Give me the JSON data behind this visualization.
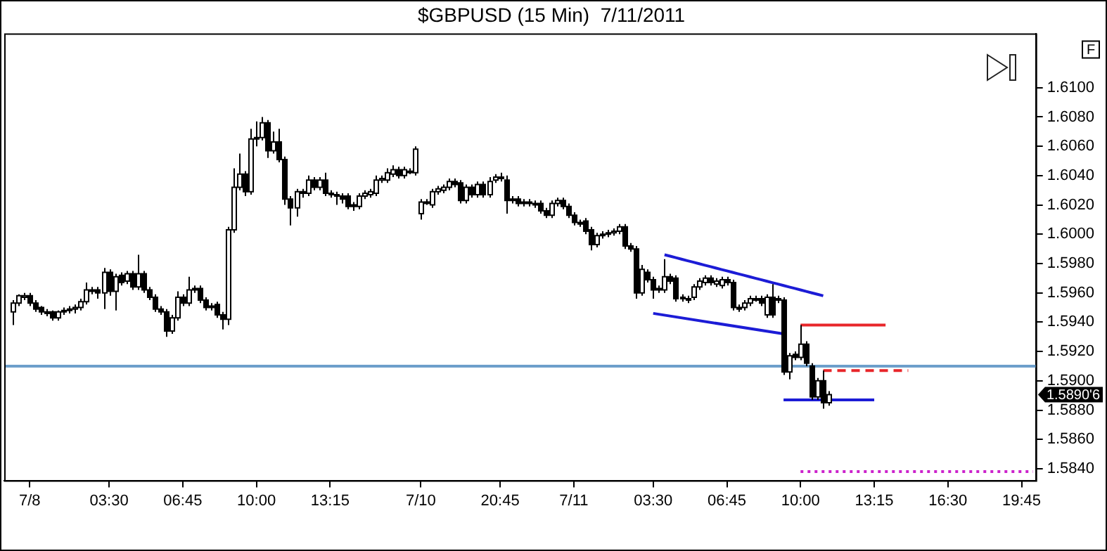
{
  "chart_data": {
    "type": "candlestick",
    "title": "$GBPUSD (15 Min)  7/11/2011",
    "categories": [
      null,
      null,
      null,
      null,
      "7/8",
      null,
      null,
      null,
      null,
      null,
      null,
      null,
      null,
      null,
      null,
      null,
      null,
      null,
      "03:30",
      null,
      null,
      null,
      null,
      null,
      null,
      null,
      null,
      null,
      null,
      null,
      null,
      "06:45",
      null,
      null,
      null,
      null,
      null,
      null,
      null,
      null,
      null,
      null,
      null,
      null,
      "10:00",
      null,
      null,
      null,
      null,
      null,
      null,
      null,
      null,
      null,
      null,
      null,
      null,
      "13:15",
      null,
      null,
      null,
      null,
      null,
      null,
      null,
      null,
      null,
      null,
      null,
      null,
      null,
      null,
      null,
      "7/10",
      null,
      null,
      null,
      null,
      null,
      null,
      null,
      null,
      null,
      null,
      null,
      null,
      null,
      "20:45",
      null,
      null,
      null,
      null,
      null,
      null,
      null,
      null,
      null,
      null,
      null,
      null,
      "7/11",
      null,
      null,
      null,
      null,
      null,
      null,
      null,
      null,
      null,
      null,
      null,
      null,
      null,
      "03:30",
      null,
      null,
      null,
      null,
      null,
      null,
      null,
      null,
      null,
      null,
      null,
      null,
      "06:45",
      null,
      null,
      null,
      null,
      null,
      null,
      null,
      null,
      null,
      null,
      null,
      null,
      "10:00",
      null,
      null,
      null,
      null,
      null,
      null,
      null,
      null,
      null,
      null,
      null,
      null,
      "13:15",
      null,
      null,
      null,
      null,
      null,
      null,
      null,
      null,
      null,
      null,
      null,
      null,
      "16:30",
      null,
      null,
      null,
      null,
      null,
      null,
      null,
      null,
      null,
      null,
      null,
      null,
      "19:45",
      null,
      null
    ],
    "ohlc": [
      null,
      [
        1.5947,
        1.5955,
        1.5938,
        1.5953
      ],
      [
        1.5953,
        1.5959,
        1.5951,
        1.5958
      ],
      [
        1.5957,
        1.596,
        1.5955,
        1.5958
      ],
      [
        1.5958,
        1.596,
        1.5951,
        1.5953
      ],
      [
        1.5953,
        1.5955,
        1.5947,
        1.5949
      ],
      [
        1.595,
        1.5951,
        1.5945,
        1.5947
      ],
      [
        1.5947,
        1.5949,
        1.5944,
        1.5946
      ],
      [
        1.5947,
        1.5948,
        1.5941,
        1.5943
      ],
      [
        1.5943,
        1.5948,
        1.5941,
        1.5947
      ],
      [
        1.5947,
        1.595,
        1.5945,
        1.5948
      ],
      [
        1.5948,
        1.5951,
        1.5946,
        1.5949
      ],
      [
        1.5949,
        1.5952,
        1.5946,
        1.595
      ],
      [
        1.595,
        1.5956,
        1.5948,
        1.5954
      ],
      [
        1.5954,
        1.5967,
        1.5952,
        1.5962
      ],
      [
        1.5962,
        1.5964,
        1.5959,
        1.5961
      ],
      [
        1.5962,
        1.5964,
        1.5956,
        1.596
      ],
      [
        1.596,
        1.5977,
        1.5949,
        1.5974
      ],
      [
        1.5974,
        1.5976,
        1.5958,
        1.5961
      ],
      [
        1.5961,
        1.5973,
        1.5948,
        1.5971
      ],
      [
        1.5972,
        1.5974,
        1.5965,
        1.5967
      ],
      [
        1.5968,
        1.5975,
        1.5966,
        1.5973
      ],
      [
        1.5973,
        1.5975,
        1.5962,
        1.5964
      ],
      [
        1.5964,
        1.5986,
        1.5962,
        1.5973
      ],
      [
        1.5973,
        1.5975,
        1.596,
        1.5962
      ],
      [
        1.5962,
        1.5964,
        1.5955,
        1.5957
      ],
      [
        1.5957,
        1.5959,
        1.5947,
        1.5949
      ],
      [
        1.5949,
        1.5951,
        1.5945,
        1.5947
      ],
      [
        1.5947,
        1.5949,
        1.593,
        1.5934
      ],
      [
        1.5934,
        1.5945,
        1.5932,
        1.5943
      ],
      [
        1.5943,
        1.5961,
        1.5941,
        1.5957
      ],
      [
        1.5957,
        1.5959,
        1.5951,
        1.5953
      ],
      [
        1.5953,
        1.5971,
        1.5951,
        1.5962
      ],
      [
        1.5962,
        1.5965,
        1.596,
        1.5963
      ],
      [
        1.5963,
        1.5965,
        1.5953,
        1.5955
      ],
      [
        1.5955,
        1.5957,
        1.5948,
        1.595
      ],
      [
        1.5951,
        1.5953,
        1.5948,
        1.595
      ],
      [
        1.5952,
        1.5954,
        1.5943,
        1.5945
      ],
      [
        1.5945,
        1.5947,
        1.5935,
        1.5942
      ],
      [
        1.5942,
        1.6005,
        1.5938,
        1.6003
      ],
      [
        1.6003,
        1.6045,
        1.6001,
        1.6032
      ],
      [
        1.6032,
        1.6055,
        1.603,
        1.6041
      ],
      [
        1.6041,
        1.6043,
        1.6026,
        1.6029
      ],
      [
        1.6029,
        1.6072,
        1.6027,
        1.6065
      ],
      [
        1.6065,
        1.6077,
        1.606,
        1.6066
      ],
      [
        1.6066,
        1.608,
        1.6064,
        1.6076
      ],
      [
        1.6076,
        1.6078,
        1.6052,
        1.6057
      ],
      [
        1.6057,
        1.607,
        1.6055,
        1.6063
      ],
      [
        1.6063,
        1.6072,
        1.6049,
        1.6051
      ],
      [
        1.6051,
        1.6053,
        1.602,
        1.6024
      ],
      [
        1.6024,
        1.6026,
        1.6006,
        1.6018
      ],
      [
        1.6018,
        1.6031,
        1.6012,
        1.6029
      ],
      [
        1.6029,
        1.6031,
        1.6025,
        1.6028
      ],
      [
        1.6028,
        1.604,
        1.6026,
        1.6037
      ],
      [
        1.6037,
        1.6039,
        1.603,
        1.6032
      ],
      [
        1.6032,
        1.6039,
        1.603,
        1.6037
      ],
      [
        1.6037,
        1.6042,
        1.6026,
        1.6028
      ],
      [
        1.6028,
        1.603,
        1.6025,
        1.6027
      ],
      [
        1.6027,
        1.6029,
        1.602,
        1.6026
      ],
      [
        1.6026,
        1.6028,
        1.6021,
        1.6024
      ],
      [
        1.6026,
        1.6028,
        1.6017,
        1.6019
      ],
      [
        1.602,
        1.6022,
        1.6016,
        1.6019
      ],
      [
        1.6019,
        1.6028,
        1.6017,
        1.6026
      ],
      [
        1.6026,
        1.603,
        1.6024,
        1.6028
      ],
      [
        1.6027,
        1.6031,
        1.6025,
        1.6029
      ],
      [
        1.6028,
        1.604,
        1.6026,
        1.6037
      ],
      [
        1.6037,
        1.604,
        1.6035,
        1.6038
      ],
      [
        1.6037,
        1.6045,
        1.6035,
        1.6042
      ],
      [
        1.6041,
        1.6047,
        1.6039,
        1.6044
      ],
      [
        1.6044,
        1.6046,
        1.6038,
        1.604
      ],
      [
        1.604,
        1.6046,
        1.6038,
        1.6044
      ],
      [
        1.6043,
        1.6045,
        1.6041,
        1.6043
      ],
      [
        1.6042,
        1.606,
        1.604,
        1.6058
      ],
      [
        1.6014,
        1.6024,
        1.601,
        1.6022
      ],
      [
        1.6022,
        1.6024,
        1.602,
        1.6022
      ],
      [
        1.602,
        1.6031,
        1.6018,
        1.6029
      ],
      [
        1.6029,
        1.6033,
        1.6027,
        1.6031
      ],
      [
        1.603,
        1.6034,
        1.6028,
        1.6032
      ],
      [
        1.6032,
        1.6038,
        1.603,
        1.6036
      ],
      [
        1.6036,
        1.6038,
        1.6032,
        1.6034
      ],
      [
        1.6035,
        1.6037,
        1.6021,
        1.6023
      ],
      [
        1.6023,
        1.6034,
        1.6021,
        1.6032
      ],
      [
        1.6032,
        1.6034,
        1.6025,
        1.6027
      ],
      [
        1.6027,
        1.6036,
        1.6025,
        1.6034
      ],
      [
        1.6034,
        1.6036,
        1.6025,
        1.6027
      ],
      [
        1.6027,
        1.6039,
        1.6025,
        1.6036
      ],
      [
        1.6037,
        1.6041,
        1.6035,
        1.6039
      ],
      [
        1.6039,
        1.6042,
        1.6036,
        1.6038
      ],
      [
        1.6037,
        1.604,
        1.6014,
        1.6023
      ],
      [
        1.6024,
        1.6026,
        1.6021,
        1.6023
      ],
      [
        1.6024,
        1.6026,
        1.6019,
        1.6021
      ],
      [
        1.6022,
        1.6024,
        1.6019,
        1.6021
      ],
      [
        1.6022,
        1.6024,
        1.6019,
        1.6021
      ],
      [
        1.6021,
        1.6023,
        1.6018,
        1.602
      ],
      [
        1.6021,
        1.6023,
        1.6014,
        1.6016
      ],
      [
        1.6016,
        1.6018,
        1.6011,
        1.6013
      ],
      [
        1.6013,
        1.6023,
        1.6011,
        1.6021
      ],
      [
        1.6021,
        1.6025,
        1.6019,
        1.6023
      ],
      [
        1.6023,
        1.6025,
        1.6017,
        1.6019
      ],
      [
        1.6019,
        1.6021,
        1.6011,
        1.6013
      ],
      [
        1.6013,
        1.6015,
        1.6006,
        1.6008
      ],
      [
        1.6008,
        1.601,
        1.6005,
        1.6007
      ],
      [
        1.6009,
        1.6011,
        1.6,
        1.6002
      ],
      [
        1.6003,
        1.6005,
        1.5989,
        1.5993
      ],
      [
        1.5993,
        1.6001,
        1.5991,
        1.5999
      ],
      [
        1.5999,
        1.6002,
        1.5997,
        1.6
      ],
      [
        1.6,
        1.6003,
        1.5998,
        1.6001
      ],
      [
        1.6001,
        1.6004,
        1.5999,
        1.6002
      ],
      [
        1.6002,
        1.6007,
        1.6,
        1.6005
      ],
      [
        1.6005,
        1.6007,
        1.599,
        1.5992
      ],
      [
        1.5992,
        1.5994,
        1.5988,
        1.599
      ],
      [
        1.599,
        1.5992,
        1.5956,
        1.596
      ],
      [
        1.596,
        1.5979,
        1.5958,
        1.5976
      ],
      [
        1.5974,
        1.5976,
        1.5967,
        1.5969
      ],
      [
        1.5969,
        1.5971,
        1.5956,
        1.5962
      ],
      [
        1.5963,
        1.5965,
        1.596,
        1.5962
      ],
      [
        1.5962,
        1.5983,
        1.596,
        1.5971
      ],
      [
        1.5971,
        1.5973,
        1.5966,
        1.5968
      ],
      [
        1.597,
        1.5972,
        1.5954,
        1.5956
      ],
      [
        1.5957,
        1.5959,
        1.5954,
        1.5956
      ],
      [
        1.5956,
        1.5958,
        1.5953,
        1.5955
      ],
      [
        1.5957,
        1.5966,
        1.5955,
        1.5964
      ],
      [
        1.5964,
        1.597,
        1.5962,
        1.5968
      ],
      [
        1.5967,
        1.5972,
        1.5965,
        1.597
      ],
      [
        1.597,
        1.5972,
        1.5965,
        1.5967
      ],
      [
        1.5966,
        1.597,
        1.5964,
        1.5968
      ],
      [
        1.5965,
        1.5971,
        1.5963,
        1.5969
      ],
      [
        1.5969,
        1.5971,
        1.5965,
        1.5967
      ],
      [
        1.5967,
        1.5969,
        1.5948,
        1.595
      ],
      [
        1.595,
        1.5952,
        1.5947,
        1.5949
      ],
      [
        1.595,
        1.5955,
        1.5948,
        1.5953
      ],
      [
        1.5953,
        1.5958,
        1.5951,
        1.5956
      ],
      [
        1.5956,
        1.5958,
        1.5954,
        1.5956
      ],
      [
        1.5956,
        1.5958,
        1.5951,
        1.5953
      ],
      [
        1.5945,
        1.5959,
        1.5943,
        1.5957
      ],
      [
        1.5957,
        1.5966,
        1.5943,
        1.5945
      ],
      [
        1.5956,
        1.5958,
        1.5953,
        1.5955
      ],
      [
        1.5955,
        1.5957,
        1.5904,
        1.5906
      ],
      [
        1.5906,
        1.5919,
        1.5901,
        1.5917
      ],
      [
        1.5918,
        1.592,
        1.5914,
        1.5916
      ],
      [
        1.5916,
        1.5938,
        1.5914,
        1.5925
      ],
      [
        1.5925,
        1.5927,
        1.591,
        1.5912
      ],
      [
        1.591,
        1.5912,
        1.5887,
        1.5889
      ],
      [
        1.5889,
        1.5902,
        1.5887,
        1.59
      ],
      [
        1.59,
        1.5907,
        1.5881,
        1.5885
      ],
      [
        1.5885,
        1.5893,
        1.5883,
        1.58906
      ],
      null,
      null,
      null,
      null,
      null,
      null,
      null,
      null,
      null,
      null,
      null,
      null,
      null,
      null,
      null,
      null,
      null,
      null,
      null,
      null,
      null,
      null,
      null,
      null,
      null,
      null,
      null,
      null,
      null,
      null,
      null,
      null,
      null,
      null,
      null,
      null
    ],
    "series": [
      {
        "type": "line",
        "color": "#1c1cd6",
        "values": [
          null,
          null,
          null,
          null,
          null,
          null,
          null,
          null,
          null,
          null,
          null,
          null,
          null,
          null,
          null,
          null,
          null,
          null,
          null,
          null,
          null,
          null,
          null,
          null,
          null,
          null,
          null,
          null,
          null,
          null,
          null,
          null,
          null,
          null,
          null,
          null,
          null,
          null,
          null,
          null,
          null,
          null,
          null,
          null,
          null,
          null,
          null,
          null,
          null,
          null,
          null,
          null,
          null,
          null,
          null,
          null,
          null,
          null,
          null,
          null,
          null,
          null,
          null,
          null,
          null,
          null,
          null,
          null,
          null,
          null,
          null,
          null,
          null,
          null,
          null,
          null,
          null,
          null,
          null,
          null,
          null,
          null,
          null,
          null,
          null,
          null,
          null,
          null,
          null,
          null,
          null,
          null,
          null,
          null,
          null,
          null,
          null,
          null,
          null,
          null,
          null,
          null,
          null,
          null,
          null,
          null,
          null,
          null,
          null,
          null,
          null,
          null,
          null,
          null,
          null,
          null,
          1.5986,
          1.5985,
          1.5984,
          1.5983,
          1.5982,
          1.5981,
          1.598,
          1.5979,
          1.5978,
          1.5977,
          1.5976,
          1.5975,
          1.5974,
          1.5973,
          1.5972,
          1.5971,
          1.597,
          1.5969,
          1.5968,
          1.5967,
          1.5966,
          1.5965,
          1.5964,
          1.5963,
          1.5962,
          1.5961,
          1.596,
          1.5959,
          1.5958,
          null,
          null,
          null,
          null,
          null,
          null,
          null,
          null,
          null,
          null,
          null,
          null,
          null,
          null,
          null,
          null,
          null,
          null,
          null,
          null,
          null,
          null,
          null,
          null,
          null,
          null,
          null,
          null,
          null,
          null,
          null,
          null,
          null,
          null,
          null,
          null,
          null
        ]
      },
      {
        "type": "line",
        "color": "#1c1cd6",
        "values": [
          null,
          null,
          null,
          null,
          null,
          null,
          null,
          null,
          null,
          null,
          null,
          null,
          null,
          null,
          null,
          null,
          null,
          null,
          null,
          null,
          null,
          null,
          null,
          null,
          null,
          null,
          null,
          null,
          null,
          null,
          null,
          null,
          null,
          null,
          null,
          null,
          null,
          null,
          null,
          null,
          null,
          null,
          null,
          null,
          null,
          null,
          null,
          null,
          null,
          null,
          null,
          null,
          null,
          null,
          null,
          null,
          null,
          null,
          null,
          null,
          null,
          null,
          null,
          null,
          null,
          null,
          null,
          null,
          null,
          null,
          null,
          null,
          null,
          null,
          null,
          null,
          null,
          null,
          null,
          null,
          null,
          null,
          null,
          null,
          null,
          null,
          null,
          null,
          null,
          null,
          null,
          null,
          null,
          null,
          null,
          null,
          null,
          null,
          null,
          null,
          null,
          null,
          null,
          null,
          null,
          null,
          null,
          null,
          null,
          null,
          null,
          null,
          null,
          null,
          1.5946,
          null,
          null,
          null,
          null,
          null,
          null,
          null,
          null,
          null,
          null,
          null,
          null,
          null,
          null,
          null,
          null,
          null,
          null,
          null,
          null,
          null,
          null,
          1.5932,
          null,
          null,
          null,
          null,
          null,
          null,
          null,
          null,
          null,
          null,
          null,
          null,
          null,
          null,
          null,
          null,
          null,
          null,
          null,
          null,
          null,
          null,
          null,
          null,
          null,
          null,
          null,
          null,
          null,
          null,
          null,
          null,
          null,
          null,
          null,
          null,
          null,
          null,
          null,
          null,
          null,
          null,
          null,
          null
        ]
      },
      {
        "type": "line",
        "color": "#1c1cd6",
        "values": [
          null,
          null,
          null,
          null,
          null,
          null,
          null,
          null,
          null,
          null,
          null,
          null,
          null,
          null,
          null,
          null,
          null,
          null,
          null,
          null,
          null,
          null,
          null,
          null,
          null,
          null,
          null,
          null,
          null,
          null,
          null,
          null,
          null,
          null,
          null,
          null,
          null,
          null,
          null,
          null,
          null,
          null,
          null,
          null,
          null,
          null,
          null,
          null,
          null,
          null,
          null,
          null,
          null,
          null,
          null,
          null,
          null,
          null,
          null,
          null,
          null,
          null,
          null,
          null,
          null,
          null,
          null,
          null,
          null,
          null,
          null,
          null,
          null,
          null,
          null,
          null,
          null,
          null,
          null,
          null,
          null,
          null,
          null,
          null,
          null,
          null,
          null,
          null,
          null,
          null,
          null,
          null,
          null,
          null,
          null,
          null,
          null,
          null,
          null,
          null,
          null,
          null,
          null,
          null,
          null,
          null,
          null,
          null,
          null,
          null,
          null,
          null,
          null,
          null,
          null,
          null,
          null,
          null,
          null,
          null,
          null,
          null,
          null,
          null,
          null,
          null,
          null,
          null,
          null,
          null,
          null,
          null,
          null,
          null,
          null,
          null,
          null,
          1.5887,
          1.5887,
          1.5887,
          1.5887,
          1.5887,
          1.5887,
          1.5887,
          1.5887,
          1.5887,
          1.5887,
          1.5887,
          1.5887,
          1.5887,
          1.5887,
          1.5887,
          1.5887,
          1.5887,
          null,
          null,
          null,
          null,
          null,
          null,
          null,
          null,
          null,
          null,
          null,
          null,
          null,
          null,
          null,
          null,
          null,
          null,
          null,
          null,
          null,
          null,
          null,
          null,
          null,
          null,
          null,
          null
        ]
      },
      {
        "type": "line",
        "color": "#e8262a",
        "values": [
          null,
          null,
          null,
          null,
          null,
          null,
          null,
          null,
          null,
          null,
          null,
          null,
          null,
          null,
          null,
          null,
          null,
          null,
          null,
          null,
          null,
          null,
          null,
          null,
          null,
          null,
          null,
          null,
          null,
          null,
          null,
          null,
          null,
          null,
          null,
          null,
          null,
          null,
          null,
          null,
          null,
          null,
          null,
          null,
          null,
          null,
          null,
          null,
          null,
          null,
          null,
          null,
          null,
          null,
          null,
          null,
          null,
          null,
          null,
          null,
          null,
          null,
          null,
          null,
          null,
          null,
          null,
          null,
          null,
          null,
          null,
          null,
          null,
          null,
          null,
          null,
          null,
          null,
          null,
          null,
          null,
          null,
          null,
          null,
          null,
          null,
          null,
          null,
          null,
          null,
          null,
          null,
          null,
          null,
          null,
          null,
          null,
          null,
          null,
          null,
          null,
          null,
          null,
          null,
          null,
          null,
          null,
          null,
          null,
          null,
          null,
          null,
          null,
          null,
          null,
          null,
          null,
          null,
          null,
          null,
          null,
          null,
          null,
          null,
          null,
          null,
          null,
          null,
          null,
          null,
          null,
          null,
          null,
          null,
          null,
          null,
          null,
          null,
          null,
          null,
          1.5938,
          1.5938,
          1.5938,
          1.5938,
          1.5938,
          1.5938,
          1.5938,
          1.5938,
          1.5938,
          1.5938,
          1.5938,
          1.5938,
          1.5938,
          1.5938,
          1.5938,
          1.5938,
          null,
          null,
          null,
          null,
          null,
          null,
          null,
          null,
          null,
          null,
          null,
          null,
          null,
          null,
          null,
          null,
          null,
          null,
          null,
          null,
          null,
          null,
          null,
          null,
          null,
          null
        ]
      },
      {
        "type": "line",
        "color": "#e8262a",
        "line_style": "dashed",
        "values": [
          null,
          null,
          null,
          null,
          null,
          null,
          null,
          null,
          null,
          null,
          null,
          null,
          null,
          null,
          null,
          null,
          null,
          null,
          null,
          null,
          null,
          null,
          null,
          null,
          null,
          null,
          null,
          null,
          null,
          null,
          null,
          null,
          null,
          null,
          null,
          null,
          null,
          null,
          null,
          null,
          null,
          null,
          null,
          null,
          null,
          null,
          null,
          null,
          null,
          null,
          null,
          null,
          null,
          null,
          null,
          null,
          null,
          null,
          null,
          null,
          null,
          null,
          null,
          null,
          null,
          null,
          null,
          null,
          null,
          null,
          null,
          null,
          null,
          null,
          null,
          null,
          null,
          null,
          null,
          null,
          null,
          null,
          null,
          null,
          null,
          null,
          null,
          null,
          null,
          null,
          null,
          null,
          null,
          null,
          null,
          null,
          null,
          null,
          null,
          null,
          null,
          null,
          null,
          null,
          null,
          null,
          null,
          null,
          null,
          null,
          null,
          null,
          null,
          null,
          null,
          null,
          null,
          null,
          null,
          null,
          null,
          null,
          null,
          null,
          null,
          null,
          null,
          null,
          null,
          null,
          null,
          null,
          null,
          null,
          null,
          null,
          null,
          null,
          null,
          null,
          null,
          null,
          null,
          null,
          1.5907,
          1.5907,
          1.5907,
          1.5907,
          1.5907,
          1.5907,
          1.5907,
          1.5907,
          1.5907,
          1.5907,
          1.5907,
          1.5907,
          1.5907,
          1.5907,
          1.5907,
          1.5907,
          null,
          null,
          null,
          null,
          null,
          null,
          null,
          null,
          null,
          null,
          null,
          null,
          null,
          null,
          null,
          null,
          null,
          null,
          null,
          null,
          null,
          null
        ]
      },
      {
        "type": "line",
        "color": "#cc22cc",
        "line_style": "dotted",
        "values": [
          null,
          null,
          null,
          null,
          null,
          null,
          null,
          null,
          null,
          null,
          null,
          null,
          null,
          null,
          null,
          null,
          null,
          null,
          null,
          null,
          null,
          null,
          null,
          null,
          null,
          null,
          null,
          null,
          null,
          null,
          null,
          null,
          null,
          null,
          null,
          null,
          null,
          null,
          null,
          null,
          null,
          null,
          null,
          null,
          null,
          null,
          null,
          null,
          null,
          null,
          null,
          null,
          null,
          null,
          null,
          null,
          null,
          null,
          null,
          null,
          null,
          null,
          null,
          null,
          null,
          null,
          null,
          null,
          null,
          null,
          null,
          null,
          null,
          null,
          null,
          null,
          null,
          null,
          null,
          null,
          null,
          null,
          null,
          null,
          null,
          null,
          null,
          null,
          null,
          null,
          null,
          null,
          null,
          null,
          null,
          null,
          null,
          null,
          null,
          null,
          null,
          null,
          null,
          null,
          null,
          null,
          null,
          null,
          null,
          null,
          null,
          null,
          null,
          null,
          null,
          null,
          null,
          null,
          null,
          null,
          null,
          null,
          null,
          null,
          null,
          null,
          null,
          null,
          null,
          null,
          null,
          null,
          null,
          null,
          null,
          null,
          null,
          null,
          null,
          null,
          1.5838,
          1.5838,
          1.5838,
          1.5838,
          1.5838,
          1.5838,
          1.5838,
          1.5838,
          1.5838,
          1.5838,
          1.5838,
          1.5838,
          1.5838,
          1.5838,
          1.5838,
          1.5838,
          1.5838,
          1.5838,
          1.5838,
          1.5838,
          1.5838,
          1.5838,
          1.5838,
          1.5838,
          1.5838,
          1.5838,
          1.5838,
          1.5838,
          1.5838,
          1.5838,
          1.5838,
          1.5838,
          1.5838,
          1.5838,
          1.5838,
          1.5838,
          1.5838,
          1.5838,
          1.5838,
          1.5838,
          1.5838,
          1.5838
        ]
      }
    ],
    "ref_lines": [
      {
        "axis": "y",
        "value": 1.591,
        "color": "#6d9fcb"
      }
    ],
    "ylim": [
      1.5832,
      1.6137
    ],
    "yticks": [
      {
        "value": 1.584,
        "label": "1.5840"
      },
      {
        "value": 1.586,
        "label": "1.5860"
      },
      {
        "value": 1.588,
        "label": "1.5880"
      },
      {
        "value": 1.59,
        "label": "1.5900"
      },
      {
        "value": 1.592,
        "label": "1.5920"
      },
      {
        "value": 1.594,
        "label": "1.5940"
      },
      {
        "value": 1.596,
        "label": "1.5960"
      },
      {
        "value": 1.598,
        "label": "1.5980"
      },
      {
        "value": 1.6,
        "label": "1.6000"
      },
      {
        "value": 1.602,
        "label": "1.6020"
      },
      {
        "value": 1.604,
        "label": "1.6040"
      },
      {
        "value": 1.606,
        "label": "1.6060"
      },
      {
        "value": 1.608,
        "label": "1.6080"
      },
      {
        "value": 1.61,
        "label": "1.6100"
      }
    ],
    "annotations": [
      "F",
      "1.5890'6"
    ],
    "grid": false,
    "legend": false
  }
}
